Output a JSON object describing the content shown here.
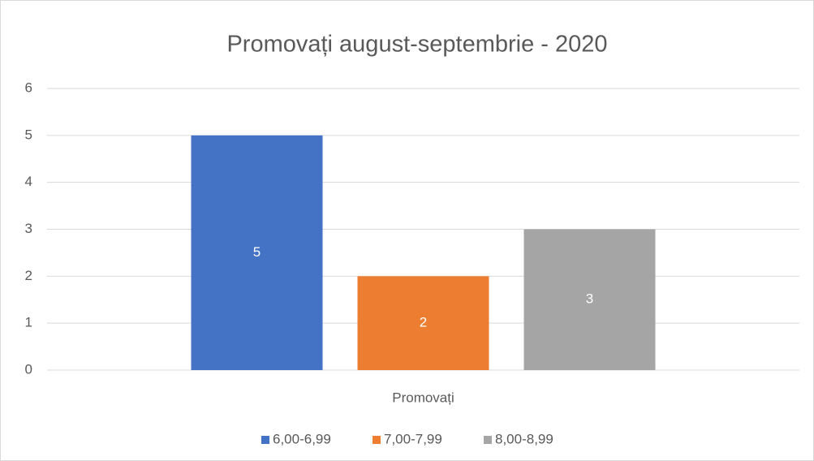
{
  "chart_data": {
    "type": "bar",
    "title": "Promovați august-septembrie - 2020",
    "categories": [
      "Promovați"
    ],
    "series": [
      {
        "name": "6,00-6,99",
        "color": "#4472c4",
        "values": [
          5
        ]
      },
      {
        "name": "7,00-7,99",
        "color": "#ed7d31",
        "values": [
          2
        ]
      },
      {
        "name": "8,00-8,99",
        "color": "#a5a5a5",
        "values": [
          3
        ]
      }
    ],
    "ylim": [
      0,
      6
    ],
    "yticks": [
      0,
      1,
      2,
      3,
      4,
      5,
      6
    ],
    "grid": true,
    "legend": "bottom",
    "data_labels": true
  }
}
